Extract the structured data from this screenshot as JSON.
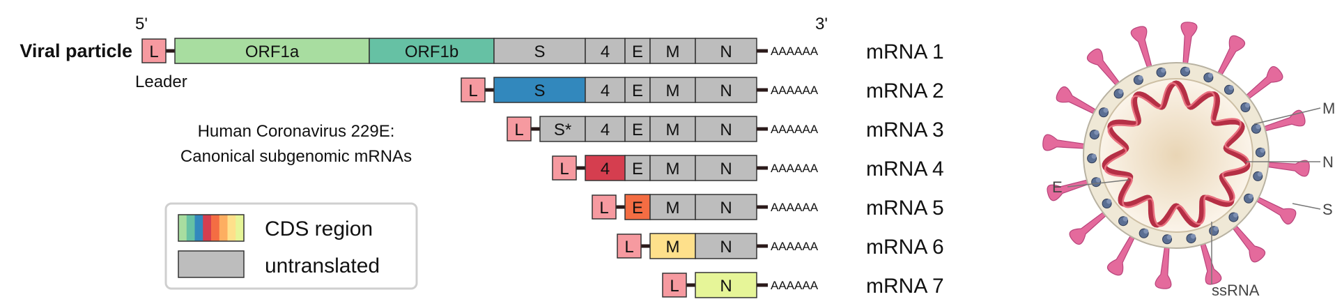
{
  "header": {
    "five_prime": "5'",
    "three_prime": "3'"
  },
  "viral_particle_label": "Viral particle",
  "leader_label": "Leader",
  "title_lines": [
    "Human Coronavirus 229E:",
    "Canonical subgenomic mRNAs"
  ],
  "poly_a": "AAAAAA",
  "rows": [
    {
      "name": "mRNA 1",
      "faded": false,
      "segments": [
        {
          "id": "L",
          "label": "L",
          "color": "#f69aa0"
        },
        {
          "id": "ORF1a",
          "label": "ORF1a",
          "color": "#a8dda0"
        },
        {
          "id": "ORF1b",
          "label": "ORF1b",
          "color": "#66c1a4"
        },
        {
          "id": "S",
          "label": "S",
          "color": "#bdbdbd"
        },
        {
          "id": "4",
          "label": "4",
          "color": "#bdbdbd"
        },
        {
          "id": "E",
          "label": "E",
          "color": "#bdbdbd"
        },
        {
          "id": "M",
          "label": "M",
          "color": "#bdbdbd"
        },
        {
          "id": "N",
          "label": "N",
          "color": "#bdbdbd"
        }
      ]
    },
    {
      "name": "mRNA 2",
      "faded": false,
      "segments": [
        {
          "id": "L",
          "label": "L",
          "color": "#f69aa0"
        },
        {
          "id": "S",
          "label": "S",
          "color": "#3288bd"
        },
        {
          "id": "4",
          "label": "4",
          "color": "#bdbdbd"
        },
        {
          "id": "E",
          "label": "E",
          "color": "#bdbdbd"
        },
        {
          "id": "M",
          "label": "M",
          "color": "#bdbdbd"
        },
        {
          "id": "N",
          "label": "N",
          "color": "#bdbdbd"
        }
      ]
    },
    {
      "name": "mRNA 3",
      "faded": true,
      "segments": [
        {
          "id": "L",
          "label": "L",
          "color": "#f69aa0"
        },
        {
          "id": "S*",
          "label": "S*",
          "color": "#bdbdbd"
        },
        {
          "id": "4",
          "label": "4",
          "color": "#bdbdbd"
        },
        {
          "id": "E",
          "label": "E",
          "color": "#bdbdbd"
        },
        {
          "id": "M",
          "label": "M",
          "color": "#bdbdbd"
        },
        {
          "id": "N",
          "label": "N",
          "color": "#bdbdbd"
        }
      ]
    },
    {
      "name": "mRNA 4",
      "faded": false,
      "segments": [
        {
          "id": "L",
          "label": "L",
          "color": "#f69aa0"
        },
        {
          "id": "4",
          "label": "4",
          "color": "#d53e4f"
        },
        {
          "id": "E",
          "label": "E",
          "color": "#bdbdbd"
        },
        {
          "id": "M",
          "label": "M",
          "color": "#bdbdbd"
        },
        {
          "id": "N",
          "label": "N",
          "color": "#bdbdbd"
        }
      ]
    },
    {
      "name": "mRNA 5",
      "faded": false,
      "segments": [
        {
          "id": "L",
          "label": "L",
          "color": "#f69aa0"
        },
        {
          "id": "E",
          "label": "E",
          "color": "#f46d43"
        },
        {
          "id": "M",
          "label": "M",
          "color": "#bdbdbd"
        },
        {
          "id": "N",
          "label": "N",
          "color": "#bdbdbd"
        }
      ]
    },
    {
      "name": "mRNA 6",
      "faded": false,
      "segments": [
        {
          "id": "L",
          "label": "L",
          "color": "#f69aa0"
        },
        {
          "id": "M",
          "label": "M",
          "color": "#fee08b"
        },
        {
          "id": "N",
          "label": "N",
          "color": "#bdbdbd"
        }
      ]
    },
    {
      "name": "mRNA 7",
      "faded": false,
      "segments": [
        {
          "id": "L",
          "label": "L",
          "color": "#f69aa0"
        },
        {
          "id": "N",
          "label": "N",
          "color": "#e6f598"
        }
      ]
    }
  ],
  "legend": {
    "cds_label": "CDS region",
    "untranslated_label": "untranslated",
    "cds_colors": [
      "#a8dda0",
      "#66c1a4",
      "#3288bd",
      "#d53e4f",
      "#f46d43",
      "#fdae61",
      "#fee08b",
      "#e6f598"
    ],
    "untranslated_color": "#bdbdbd"
  },
  "virion_labels": {
    "M": "M",
    "N": "N",
    "E": "E",
    "S": "S",
    "ssRNA": "ssRNA"
  }
}
